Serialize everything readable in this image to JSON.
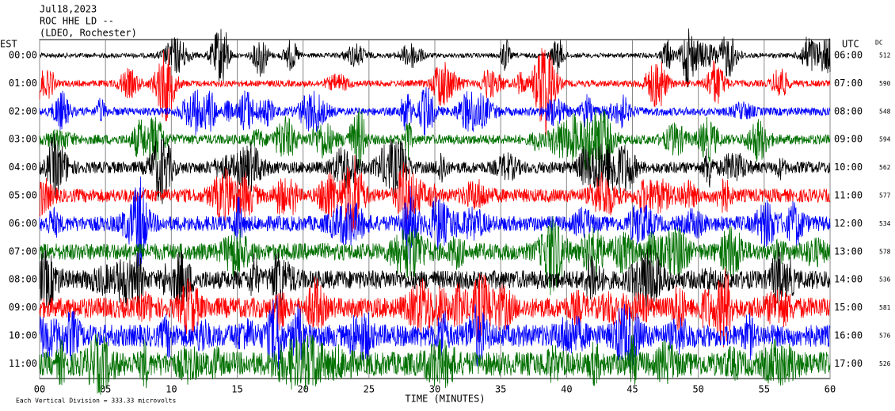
{
  "chart_data": {
    "type": "helicorder",
    "title_lines": [
      "Jul18,2023",
      "ROC HHE LD --",
      "(LDEO, Rochester)"
    ],
    "left_axis_title": "EST",
    "right_axis_title": "UTC",
    "dc_title": "DC",
    "xlabel": "TIME (MINUTES)",
    "xlim": [
      0,
      60
    ],
    "xticks": [
      {
        "value": 0,
        "label": "00"
      },
      {
        "value": 5,
        "label": "05"
      },
      10,
      15,
      20,
      25,
      30,
      35,
      40,
      45,
      50,
      55,
      60
    ],
    "rows": [
      {
        "est": "00:00",
        "utc": "06:00",
        "dc": 512,
        "color": "#000000"
      },
      {
        "est": "01:00",
        "utc": "07:00",
        "dc": 590,
        "color": "#ff0000"
      },
      {
        "est": "02:00",
        "utc": "08:00",
        "dc": 548,
        "color": "#0000ff"
      },
      {
        "est": "03:00",
        "utc": "09:00",
        "dc": 594,
        "color": "#007000"
      },
      {
        "est": "04:00",
        "utc": "10:00",
        "dc": 562,
        "color": "#000000"
      },
      {
        "est": "05:00",
        "utc": "11:00",
        "dc": 577,
        "color": "#ff0000"
      },
      {
        "est": "06:00",
        "utc": "12:00",
        "dc": 534,
        "color": "#0000ff"
      },
      {
        "est": "07:00",
        "utc": "13:00",
        "dc": 578,
        "color": "#007000"
      },
      {
        "est": "08:00",
        "utc": "14:00",
        "dc": 536,
        "color": "#000000"
      },
      {
        "est": "09:00",
        "utc": "15:00",
        "dc": 581,
        "color": "#ff0000"
      },
      {
        "est": "10:00",
        "utc": "16:00",
        "dc": 576,
        "color": "#0000ff"
      },
      {
        "est": "11:00",
        "utc": "17:00",
        "dc": 526,
        "color": "#007000"
      }
    ],
    "footer": "Each Vertical Division = 333.33 microvolts"
  }
}
